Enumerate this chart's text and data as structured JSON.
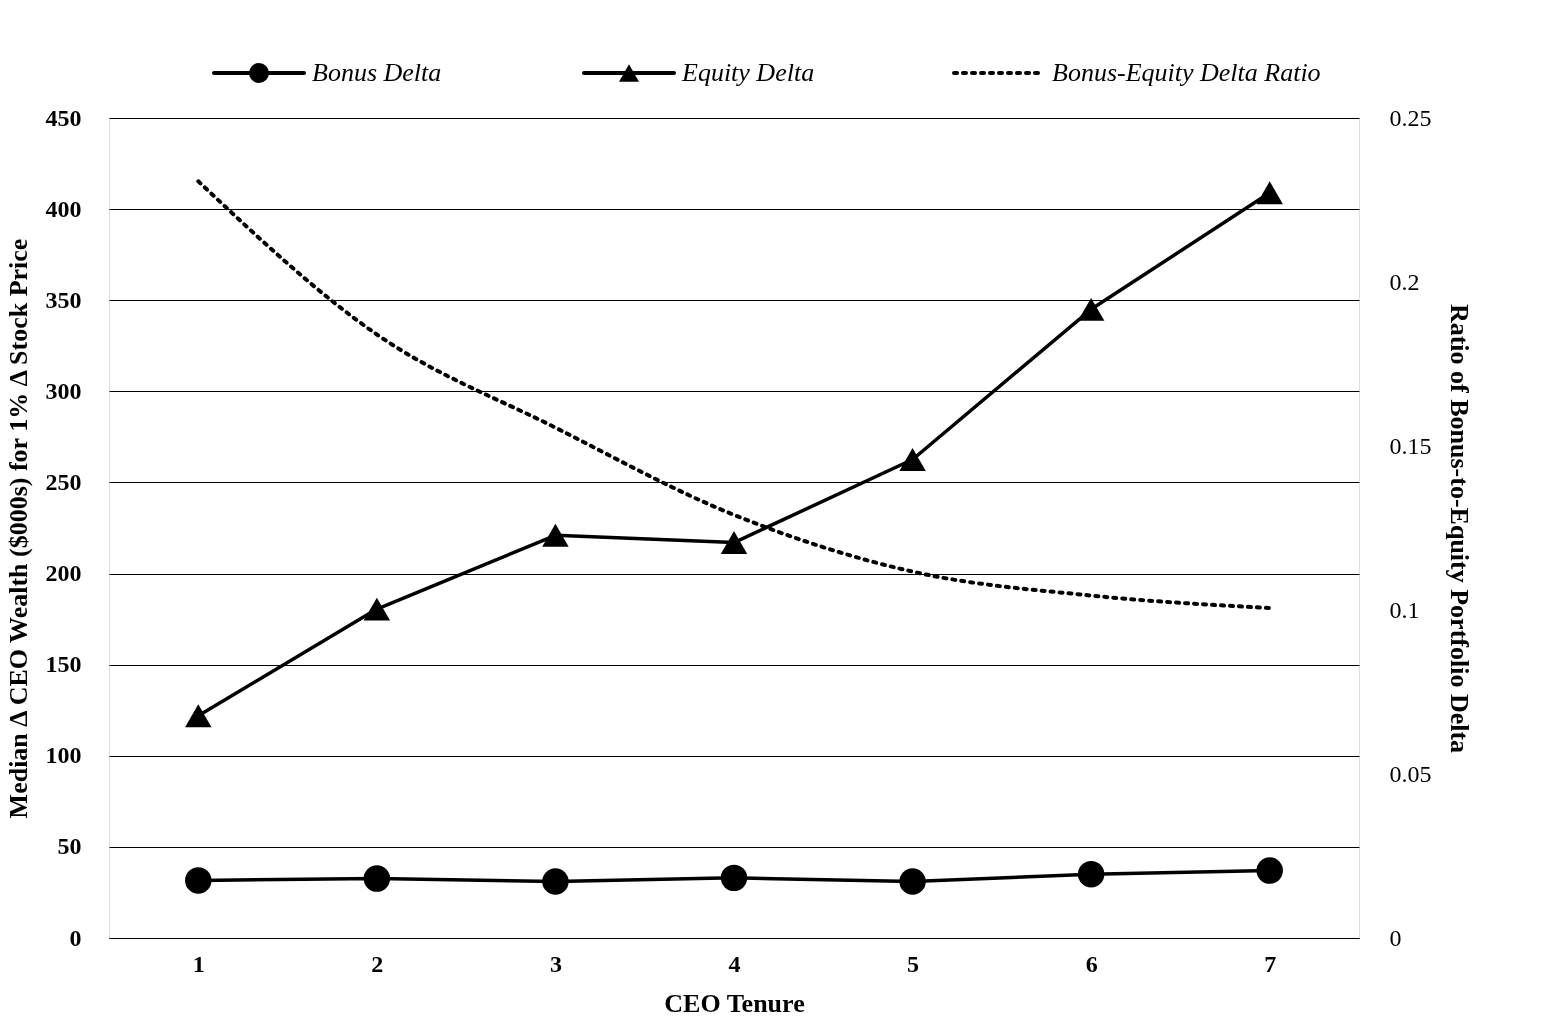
{
  "chart_data": {
    "type": "line",
    "categories": [
      "1",
      "2",
      "3",
      "4",
      "5",
      "6",
      "7"
    ],
    "xlabel": "CEO Tenure",
    "ylabel": "Median Δ CEO Wealth ($000s) for 1% Δ Stock Price",
    "y2label": "Ratio of Bonus-to-Equity Portfolio Delta",
    "series": [
      {
        "name": "Bonus Delta",
        "color": "#000000",
        "marker": "circle",
        "line_style": "solid",
        "values": [
          31.6,
          32.6,
          31,
          33,
          31,
          35,
          37
        ]
      },
      {
        "name": "Equity Delta",
        "color": "#000000",
        "marker": "triangle",
        "line_style": "solid",
        "values": [
          122,
          180.5,
          221,
          217,
          262.6,
          345,
          409
        ]
      },
      {
        "name": "Bonus-Equity Delta Ratio",
        "color": "#000000",
        "marker": "none",
        "line_style": "dotted",
        "axis": "y2",
        "values": [
          0.2307,
          0.184,
          0.1556,
          0.129,
          0.1117,
          0.1044,
          0.1006
        ]
      }
    ],
    "ylim": [
      0,
      450
    ],
    "yticks": [
      0,
      50,
      100,
      150,
      200,
      250,
      300,
      350,
      400,
      450
    ],
    "y2lim": [
      0,
      0.25
    ],
    "y2ticks": [
      0,
      0.05,
      0.1,
      0.15,
      0.2,
      0.25
    ],
    "grid": "y",
    "legend": "top"
  }
}
